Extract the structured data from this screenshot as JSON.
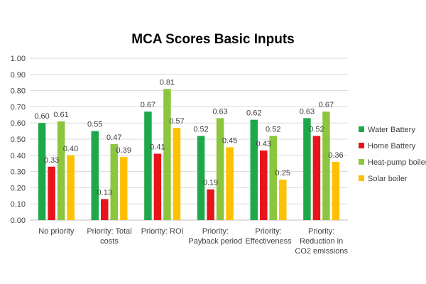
{
  "chart_data": {
    "type": "bar",
    "title": "MCA Scores Basic Inputs",
    "xlabel": "",
    "ylabel": "",
    "ylim": [
      0,
      1.0
    ],
    "yticks": [
      "0.00",
      "0.10",
      "0.20",
      "0.30",
      "0.40",
      "0.50",
      "0.60",
      "0.70",
      "0.80",
      "0.90",
      "1.00"
    ],
    "categories": [
      [
        "No priority"
      ],
      [
        "Priority: Total",
        "costs"
      ],
      [
        "Priority: ROI"
      ],
      [
        "Priority:",
        "Payback period"
      ],
      [
        "Priority:",
        "Effectiveness"
      ],
      [
        "Priority:",
        "Reduction in",
        "CO2 emissions"
      ]
    ],
    "series": [
      {
        "name": "Water Battery",
        "color": "#1fa84a",
        "values": [
          0.6,
          0.55,
          0.67,
          0.52,
          0.62,
          0.63
        ],
        "labels": [
          "0.60",
          "0.55",
          "0.67",
          "0.52",
          "0.62",
          "0.63"
        ]
      },
      {
        "name": "Home Battery",
        "color": "#e8141b",
        "values": [
          0.33,
          0.13,
          0.41,
          0.19,
          0.43,
          0.52
        ],
        "labels": [
          "0.33",
          "0.13",
          "0.41",
          "0.19",
          "0.43",
          "0.52"
        ]
      },
      {
        "name": "Heat-pump boiler",
        "color": "#8cc63f",
        "values": [
          0.61,
          0.47,
          0.81,
          0.63,
          0.52,
          0.67
        ],
        "labels": [
          "0.61",
          "0.47",
          "0.81",
          "0.63",
          "0.52",
          "0.67"
        ]
      },
      {
        "name": "Solar boiler",
        "color": "#ffc000",
        "values": [
          0.4,
          0.39,
          0.57,
          0.45,
          0.25,
          0.36
        ],
        "labels": [
          "0.40",
          "0.39",
          "0.57",
          "0.45",
          "0.25",
          "0.36"
        ]
      }
    ],
    "legend": "right",
    "grid": true
  }
}
